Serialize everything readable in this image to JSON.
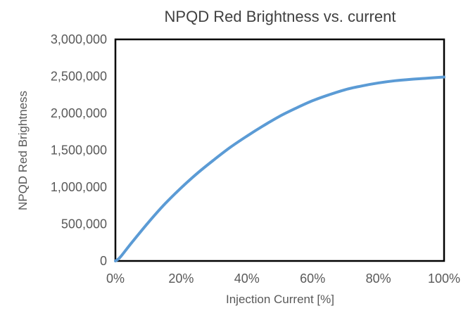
{
  "chart_data": {
    "type": "line",
    "title": "NPQD Red Brightness vs. current",
    "xlabel": "Injection Current [%]",
    "ylabel": "NPQD Red Brightness",
    "xlim": [
      0,
      100
    ],
    "ylim": [
      0,
      3000000
    ],
    "x_ticks": [
      0,
      20,
      40,
      60,
      80,
      100
    ],
    "x_tick_labels": [
      "0%",
      "20%",
      "40%",
      "60%",
      "80%",
      "100%"
    ],
    "y_ticks": [
      0,
      500000,
      1000000,
      1500000,
      2000000,
      2500000,
      3000000
    ],
    "y_tick_labels": [
      "0",
      "500,000",
      "1,000,000",
      "1,500,000",
      "2,000,000",
      "2,500,000",
      "3,000,000"
    ],
    "grid": false,
    "legend": "none",
    "series": [
      {
        "color": "#5B9BD5",
        "x": [
          0,
          1,
          2,
          5,
          10,
          15,
          20,
          25,
          30,
          35,
          40,
          45,
          50,
          55,
          60,
          65,
          70,
          75,
          80,
          85,
          90,
          95,
          100
        ],
        "y": [
          0,
          30000,
          80000,
          250000,
          520000,
          770000,
          990000,
          1190000,
          1370000,
          1540000,
          1690000,
          1830000,
          1960000,
          2070000,
          2170000,
          2250000,
          2320000,
          2370000,
          2410000,
          2440000,
          2460000,
          2475000,
          2490000
        ]
      }
    ]
  }
}
